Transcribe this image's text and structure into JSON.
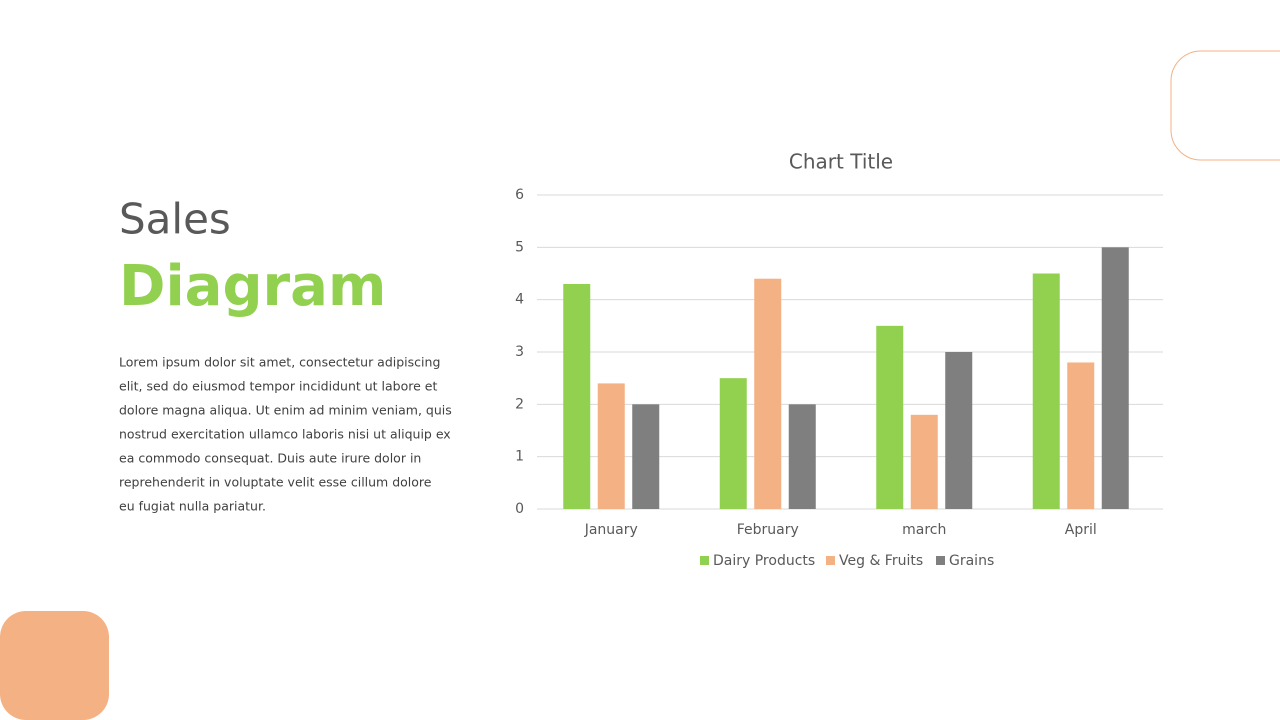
{
  "heading": {
    "line1": "Sales",
    "line2": "Diagram"
  },
  "body": {
    "lines": [
      "Lorem ipsum dolor sit amet, consectetur adipiscing",
      "elit, sed do eiusmod tempor incididunt ut labore et",
      "dolore magna aliqua. Ut enim ad minim veniam, quis",
      "nostrud exercitation ullamco laboris nisi ut aliquip ex",
      "ea commodo consequat. Duis aute irure dolor in",
      "reprehenderit in voluptate velit esse cillum dolore",
      "eu fugiat nulla pariatur."
    ]
  },
  "chart_data": {
    "type": "bar",
    "title": "Chart Title",
    "categories": [
      "January",
      "February",
      "march",
      "April"
    ],
    "series": [
      {
        "name": "Dairy Products",
        "color": "#92d050",
        "values": [
          4.3,
          2.5,
          3.5,
          4.5
        ]
      },
      {
        "name": "Veg & Fruits",
        "color": "#f4b183",
        "values": [
          2.4,
          4.4,
          1.8,
          2.8
        ]
      },
      {
        "name": "Grains",
        "color": "#7f7f7f",
        "values": [
          2,
          2,
          3,
          5
        ]
      }
    ],
    "ylim": [
      0,
      6
    ],
    "yticks": [
      0,
      1,
      2,
      3,
      4,
      5,
      6
    ],
    "grid": true,
    "legend": "bottom"
  }
}
